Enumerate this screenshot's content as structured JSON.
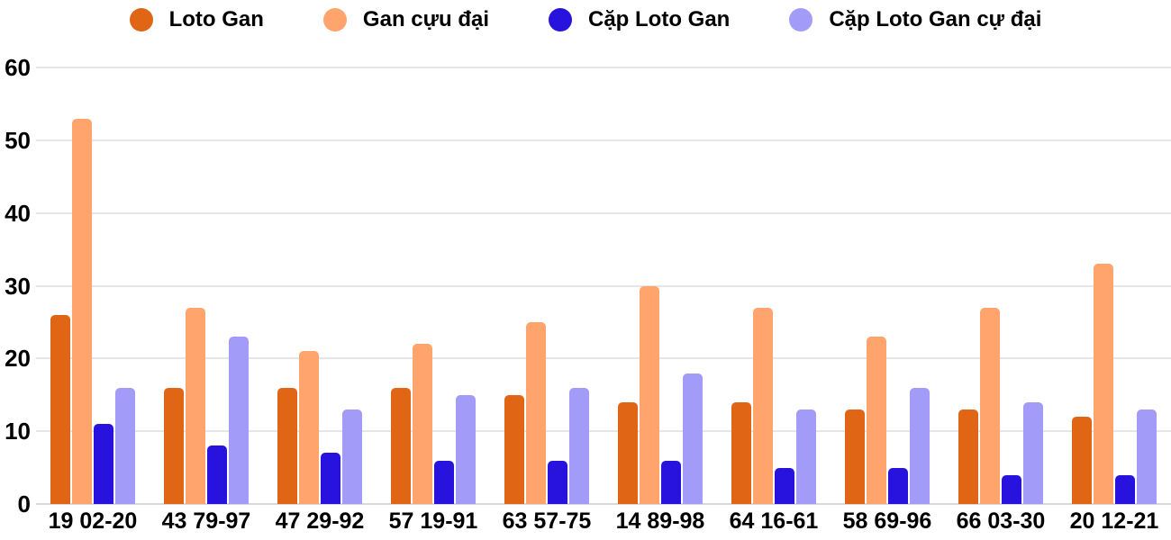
{
  "chart_data": {
    "type": "bar",
    "title": "",
    "xlabel": "",
    "ylabel": "",
    "categories": [
      "19 02-20",
      "43 79-97",
      "47 29-92",
      "57 19-91",
      "63 57-75",
      "14 89-98",
      "64 16-61",
      "58 69-96",
      "66 03-30",
      "20 12-21"
    ],
    "series": [
      {
        "name": "Loto Gan",
        "color": "#e06514",
        "values": [
          26,
          16,
          16,
          16,
          15,
          14,
          14,
          13,
          13,
          12
        ]
      },
      {
        "name": "Gan cựu đại",
        "color": "#ffa46c",
        "values": [
          53,
          27,
          21,
          22,
          25,
          30,
          27,
          23,
          27,
          33
        ]
      },
      {
        "name": "Cặp Loto Gan",
        "color": "#2713dd",
        "values": [
          11,
          8,
          7,
          6,
          6,
          6,
          5,
          5,
          4,
          4
        ]
      },
      {
        "name": "Cặp Loto Gan cự đại",
        "color": "#a39bf8",
        "values": [
          16,
          23,
          13,
          15,
          16,
          18,
          13,
          16,
          14,
          13
        ]
      }
    ],
    "ylim": [
      0,
      60
    ],
    "yticks": [
      0,
      10,
      20,
      30,
      40,
      50,
      60
    ],
    "grid": true,
    "grid_color": "#e6e6e6",
    "axis_line_color": "#d9d9d9",
    "text_color": "#000000",
    "background_color": "#ffffff",
    "legend_position": "top"
  }
}
